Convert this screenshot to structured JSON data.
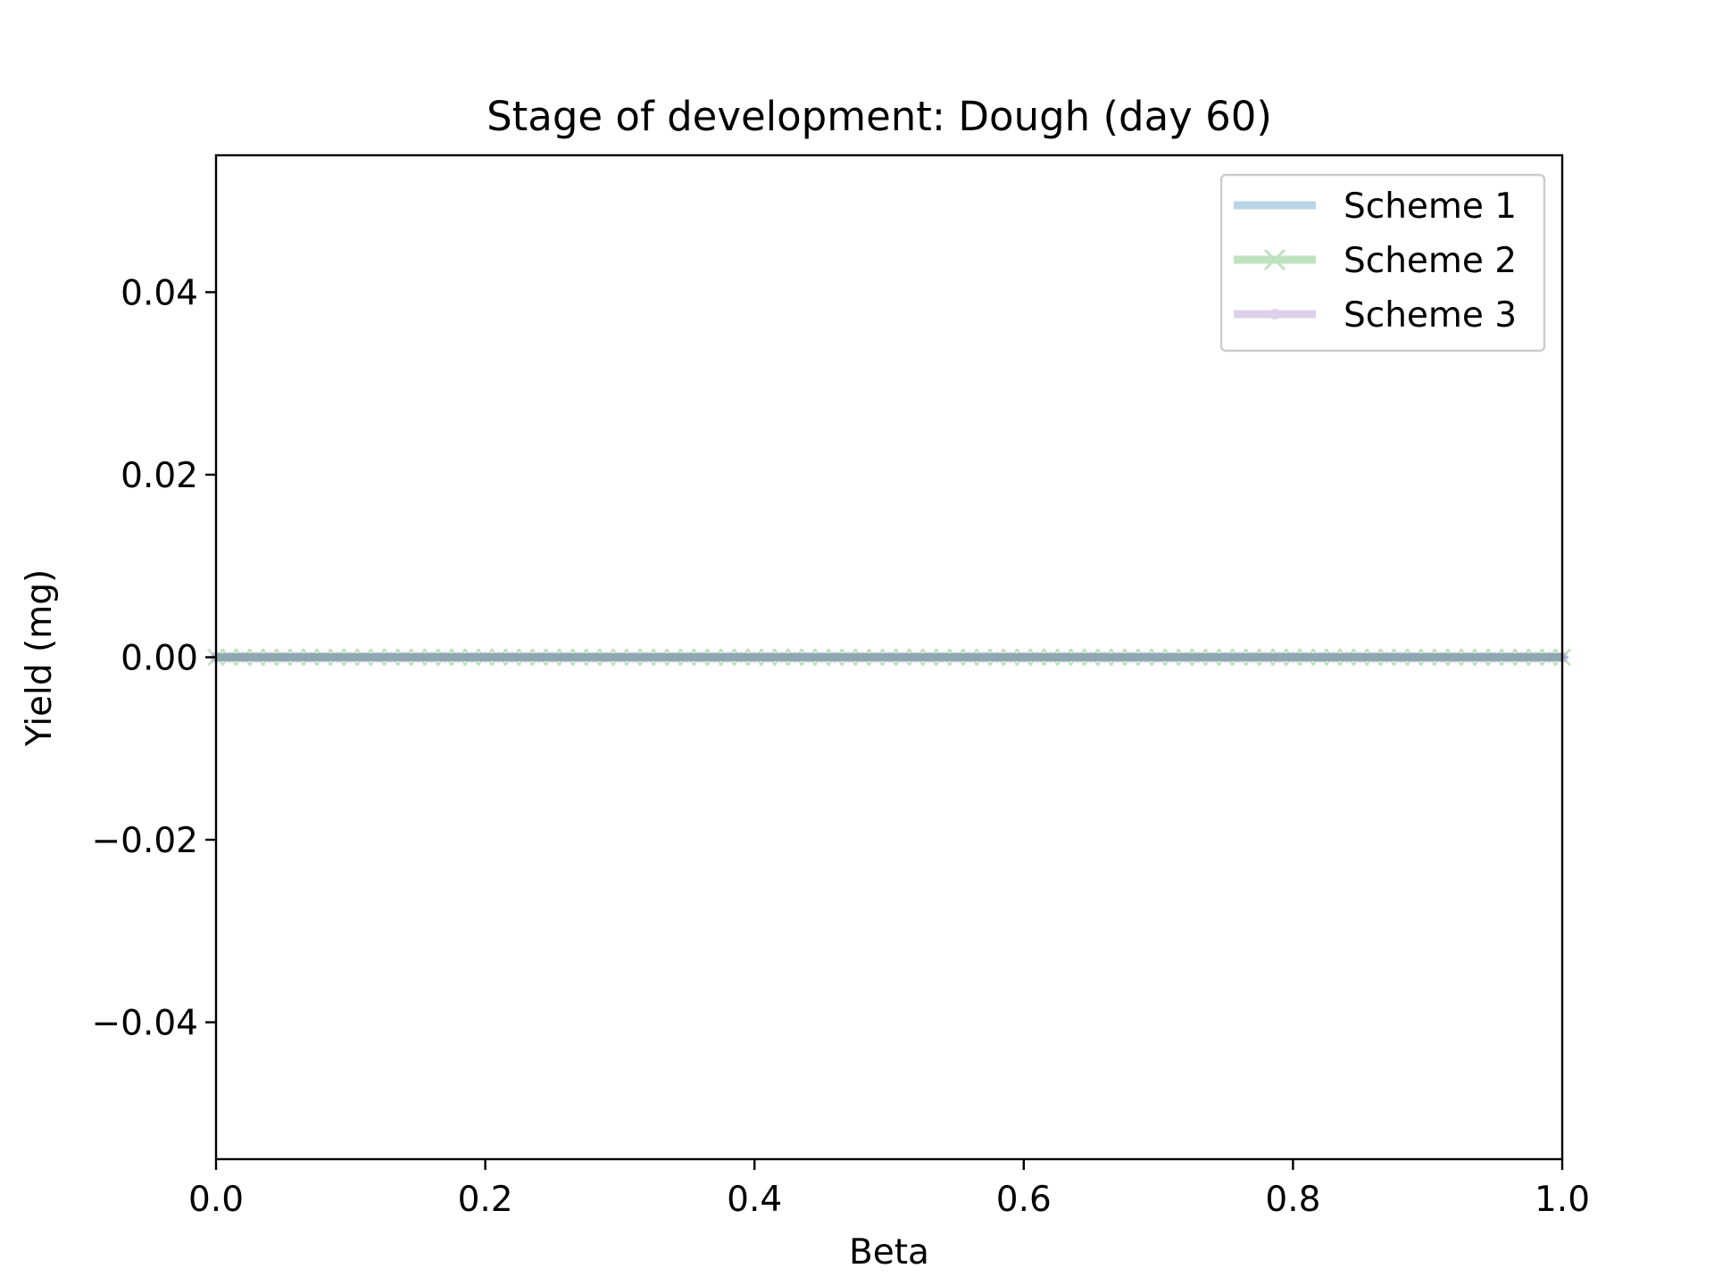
{
  "chart_data": {
    "type": "line",
    "title": "Stage of development: Dough (day 60)",
    "xlabel": "Beta",
    "ylabel": "Yield (mg)",
    "xlim": [
      0.0,
      1.0
    ],
    "ylim": [
      -0.055,
      0.055
    ],
    "xticks": [
      0.0,
      0.2,
      0.4,
      0.6,
      0.8,
      1.0
    ],
    "xtick_labels": [
      "0.0",
      "0.2",
      "0.4",
      "0.6",
      "0.8",
      "1.0"
    ],
    "yticks": [
      -0.04,
      -0.02,
      0.0,
      0.02,
      0.04
    ],
    "ytick_labels": [
      "−0.04",
      "−0.02",
      "0.00",
      "0.02",
      "0.04"
    ],
    "grid": false,
    "legend": {
      "placement": "top-right"
    },
    "x": [
      0.0,
      0.01,
      0.02,
      0.03,
      0.04,
      0.05,
      0.06,
      0.07,
      0.08,
      0.09,
      0.1,
      0.11,
      0.12,
      0.13,
      0.14,
      0.15,
      0.16,
      0.17,
      0.18,
      0.19,
      0.2,
      0.21,
      0.22,
      0.23,
      0.24,
      0.25,
      0.26,
      0.27,
      0.28,
      0.29,
      0.3,
      0.31,
      0.32,
      0.33,
      0.34,
      0.35,
      0.36,
      0.37,
      0.38,
      0.39,
      0.4,
      0.41,
      0.42,
      0.43,
      0.44,
      0.45,
      0.46,
      0.47,
      0.48,
      0.49,
      0.5,
      0.51,
      0.52,
      0.53,
      0.54,
      0.55,
      0.56,
      0.57,
      0.58,
      0.59,
      0.6,
      0.61,
      0.62,
      0.63,
      0.64,
      0.65,
      0.66,
      0.67,
      0.68,
      0.69,
      0.7,
      0.71,
      0.72,
      0.73,
      0.74,
      0.75,
      0.76,
      0.77,
      0.78,
      0.79,
      0.8,
      0.81,
      0.82,
      0.83,
      0.84,
      0.85,
      0.86,
      0.87,
      0.88,
      0.89,
      0.9,
      0.91,
      0.92,
      0.93,
      0.94,
      0.95,
      0.96,
      0.97,
      0.98,
      0.99,
      1.0
    ],
    "series": [
      {
        "name": "Scheme 1",
        "marker": "dash",
        "color": "#1f77b4",
        "constant_value": 0.0
      },
      {
        "name": "Scheme 2",
        "marker": "x",
        "color": "#2ca02c",
        "constant_value": 0.0
      },
      {
        "name": "Scheme 3",
        "marker": "dot",
        "color": "#9467bd",
        "constant_value": 0.0
      }
    ]
  }
}
